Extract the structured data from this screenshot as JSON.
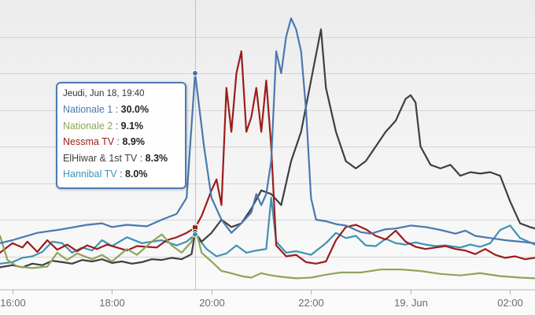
{
  "chart_data": {
    "type": "line",
    "title": "",
    "xlabel": "",
    "ylabel": "",
    "x_ticks": [
      "16:00",
      "18:00",
      "20:00",
      "22:00",
      "19. Jun",
      "02:00"
    ],
    "x_tick_hours": [
      16,
      18,
      20,
      22,
      24,
      26
    ],
    "x_range_hours": [
      15.75,
      26.5
    ],
    "y_range": [
      0,
      40
    ],
    "grid": "horizontal",
    "legend": "none",
    "series": [
      {
        "name": "Nationale 1",
        "color": "#4a78b0",
        "points": [
          [
            15.75,
            6.8
          ],
          [
            16.0,
            7.2
          ],
          [
            16.5,
            8.2
          ],
          [
            17.0,
            8.7
          ],
          [
            17.5,
            9.3
          ],
          [
            17.8,
            9.5
          ],
          [
            18.0,
            9.0
          ],
          [
            18.3,
            9.3
          ],
          [
            18.7,
            9.1
          ],
          [
            19.0,
            10.0
          ],
          [
            19.3,
            10.8
          ],
          [
            19.5,
            13.0
          ],
          [
            19.67,
            30.0
          ],
          [
            19.85,
            20.0
          ],
          [
            20.0,
            13.0
          ],
          [
            20.2,
            10.0
          ],
          [
            20.4,
            8.2
          ],
          [
            20.6,
            9.5
          ],
          [
            20.8,
            11.0
          ],
          [
            20.9,
            13.5
          ],
          [
            21.0,
            12.0
          ],
          [
            21.1,
            13.5
          ],
          [
            21.2,
            18.0
          ],
          [
            21.3,
            33.0
          ],
          [
            21.4,
            30.0
          ],
          [
            21.5,
            35.0
          ],
          [
            21.6,
            37.5
          ],
          [
            21.7,
            36.0
          ],
          [
            21.8,
            33.0
          ],
          [
            21.9,
            25.0
          ],
          [
            22.0,
            13.0
          ],
          [
            22.1,
            10.0
          ],
          [
            22.3,
            9.8
          ],
          [
            22.5,
            9.4
          ],
          [
            22.7,
            9.2
          ],
          [
            22.9,
            8.6
          ],
          [
            23.0,
            8.3
          ],
          [
            23.2,
            8.1
          ],
          [
            23.5,
            8.7
          ],
          [
            23.7,
            8.8
          ],
          [
            24.0,
            9.2
          ],
          [
            24.3,
            9.0
          ],
          [
            24.6,
            8.6
          ],
          [
            24.9,
            8.1
          ],
          [
            25.1,
            8.5
          ],
          [
            25.3,
            7.8
          ],
          [
            25.6,
            7.5
          ],
          [
            25.9,
            7.2
          ],
          [
            26.2,
            7.0
          ],
          [
            26.5,
            6.8
          ]
        ]
      },
      {
        "name": "Nationale 2",
        "color": "#8ea556",
        "points": [
          [
            15.75,
            7.8
          ],
          [
            15.9,
            4.5
          ],
          [
            16.1,
            3.6
          ],
          [
            16.4,
            3.4
          ],
          [
            16.7,
            3.6
          ],
          [
            16.9,
            5.5
          ],
          [
            17.1,
            4.5
          ],
          [
            17.3,
            5.4
          ],
          [
            17.6,
            4.6
          ],
          [
            17.8,
            5.2
          ],
          [
            18.0,
            4.3
          ],
          [
            18.3,
            6.0
          ],
          [
            18.5,
            5.2
          ],
          [
            18.8,
            7.0
          ],
          [
            19.0,
            8.0
          ],
          [
            19.2,
            6.5
          ],
          [
            19.4,
            5.5
          ],
          [
            19.6,
            7.0
          ],
          [
            19.67,
            9.1
          ],
          [
            19.8,
            5.5
          ],
          [
            20.0,
            4.3
          ],
          [
            20.2,
            3.0
          ],
          [
            20.4,
            2.7
          ],
          [
            20.6,
            2.3
          ],
          [
            20.8,
            2.1
          ],
          [
            21.0,
            2.7
          ],
          [
            21.2,
            2.4
          ],
          [
            21.4,
            2.2
          ],
          [
            21.7,
            2.0
          ],
          [
            22.0,
            2.1
          ],
          [
            22.3,
            2.5
          ],
          [
            22.6,
            2.8
          ],
          [
            23.0,
            2.8
          ],
          [
            23.4,
            3.2
          ],
          [
            23.8,
            3.2
          ],
          [
            24.2,
            3.0
          ],
          [
            24.6,
            2.6
          ],
          [
            25.0,
            2.4
          ],
          [
            25.4,
            2.7
          ],
          [
            25.8,
            2.3
          ],
          [
            26.2,
            2.1
          ],
          [
            26.5,
            2.0
          ]
        ]
      },
      {
        "name": "Nessma TV",
        "color": "#9c1c1c",
        "points": [
          [
            15.75,
            5.5
          ],
          [
            16.0,
            6.8
          ],
          [
            16.2,
            6.2
          ],
          [
            16.3,
            7.0
          ],
          [
            16.5,
            5.6
          ],
          [
            16.7,
            7.2
          ],
          [
            16.9,
            5.9
          ],
          [
            17.1,
            6.6
          ],
          [
            17.3,
            5.7
          ],
          [
            17.5,
            6.5
          ],
          [
            17.7,
            6.0
          ],
          [
            17.9,
            6.6
          ],
          [
            18.1,
            6.2
          ],
          [
            18.3,
            5.8
          ],
          [
            18.5,
            6.4
          ],
          [
            18.7,
            6.3
          ],
          [
            18.9,
            6.2
          ],
          [
            19.1,
            7.2
          ],
          [
            19.3,
            7.6
          ],
          [
            19.5,
            8.2
          ],
          [
            19.67,
            8.9
          ],
          [
            19.8,
            10.5
          ],
          [
            20.0,
            14.0
          ],
          [
            20.1,
            15.5
          ],
          [
            20.2,
            12.0
          ],
          [
            20.3,
            28.0
          ],
          [
            20.4,
            22.0
          ],
          [
            20.5,
            30.0
          ],
          [
            20.6,
            33.0
          ],
          [
            20.7,
            22.0
          ],
          [
            20.8,
            24.0
          ],
          [
            20.9,
            28.0
          ],
          [
            21.0,
            22.0
          ],
          [
            21.1,
            29.0
          ],
          [
            21.2,
            20.0
          ],
          [
            21.3,
            6.5
          ],
          [
            21.5,
            5.0
          ],
          [
            21.7,
            5.2
          ],
          [
            21.9,
            4.2
          ],
          [
            22.1,
            4.0
          ],
          [
            22.3,
            4.3
          ],
          [
            22.5,
            7.2
          ],
          [
            22.7,
            9.0
          ],
          [
            22.9,
            9.3
          ],
          [
            23.1,
            8.7
          ],
          [
            23.3,
            7.8
          ],
          [
            23.5,
            7.3
          ],
          [
            23.7,
            8.5
          ],
          [
            23.9,
            7.0
          ],
          [
            24.1,
            6.3
          ],
          [
            24.3,
            6.0
          ],
          [
            24.5,
            6.2
          ],
          [
            24.7,
            6.4
          ],
          [
            24.9,
            6.0
          ],
          [
            25.1,
            5.8
          ],
          [
            25.3,
            5.3
          ],
          [
            25.5,
            6.0
          ],
          [
            25.7,
            5.2
          ],
          [
            25.9,
            4.8
          ],
          [
            26.1,
            5.0
          ],
          [
            26.3,
            4.6
          ],
          [
            26.5,
            4.8
          ]
        ]
      },
      {
        "name": "ElHiwar & 1st TV",
        "color": "#3f3f3f",
        "points": [
          [
            15.75,
            3.5
          ],
          [
            16.0,
            3.8
          ],
          [
            16.2,
            3.5
          ],
          [
            16.4,
            4.0
          ],
          [
            16.6,
            3.8
          ],
          [
            16.8,
            4.4
          ],
          [
            17.0,
            4.2
          ],
          [
            17.2,
            4.0
          ],
          [
            17.4,
            4.5
          ],
          [
            17.6,
            4.3
          ],
          [
            17.8,
            4.6
          ],
          [
            18.0,
            4.1
          ],
          [
            18.2,
            4.3
          ],
          [
            18.4,
            4.0
          ],
          [
            18.6,
            4.2
          ],
          [
            18.8,
            4.6
          ],
          [
            19.0,
            4.5
          ],
          [
            19.2,
            4.8
          ],
          [
            19.4,
            4.6
          ],
          [
            19.6,
            5.3
          ],
          [
            19.67,
            8.3
          ],
          [
            19.8,
            7.0
          ],
          [
            20.0,
            8.2
          ],
          [
            20.2,
            10.0
          ],
          [
            20.4,
            9.0
          ],
          [
            20.6,
            9.5
          ],
          [
            20.8,
            11.5
          ],
          [
            21.0,
            14.0
          ],
          [
            21.2,
            13.5
          ],
          [
            21.4,
            12.0
          ],
          [
            21.6,
            18.0
          ],
          [
            21.8,
            22.0
          ],
          [
            22.0,
            29.0
          ],
          [
            22.2,
            36.0
          ],
          [
            22.3,
            28.0
          ],
          [
            22.5,
            22.0
          ],
          [
            22.7,
            18.0
          ],
          [
            22.9,
            17.0
          ],
          [
            23.1,
            18.0
          ],
          [
            23.3,
            20.0
          ],
          [
            23.5,
            22.0
          ],
          [
            23.7,
            23.5
          ],
          [
            23.9,
            26.5
          ],
          [
            24.0,
            27.0
          ],
          [
            24.1,
            26.0
          ],
          [
            24.2,
            20.0
          ],
          [
            24.4,
            17.5
          ],
          [
            24.6,
            17.0
          ],
          [
            24.8,
            17.5
          ],
          [
            25.0,
            16.0
          ],
          [
            25.2,
            16.5
          ],
          [
            25.4,
            16.3
          ],
          [
            25.6,
            16.5
          ],
          [
            25.8,
            16.0
          ],
          [
            26.0,
            12.5
          ],
          [
            26.2,
            9.5
          ],
          [
            26.4,
            9.0
          ],
          [
            26.5,
            8.8
          ]
        ]
      },
      {
        "name": "Hannibal TV",
        "color": "#3e93b4",
        "points": [
          [
            15.75,
            4.0
          ],
          [
            16.0,
            4.2
          ],
          [
            16.2,
            4.8
          ],
          [
            16.4,
            5.0
          ],
          [
            16.6,
            5.6
          ],
          [
            16.8,
            7.0
          ],
          [
            17.0,
            6.8
          ],
          [
            17.2,
            5.5
          ],
          [
            17.4,
            6.2
          ],
          [
            17.6,
            5.8
          ],
          [
            17.8,
            7.2
          ],
          [
            18.0,
            6.4
          ],
          [
            18.3,
            7.6
          ],
          [
            18.6,
            6.8
          ],
          [
            19.0,
            7.2
          ],
          [
            19.3,
            6.5
          ],
          [
            19.5,
            7.0
          ],
          [
            19.67,
            8.0
          ],
          [
            19.9,
            6.0
          ],
          [
            20.1,
            5.0
          ],
          [
            20.3,
            5.4
          ],
          [
            20.5,
            6.5
          ],
          [
            20.7,
            5.5
          ],
          [
            20.9,
            5.8
          ],
          [
            21.1,
            6.0
          ],
          [
            21.2,
            13.0
          ],
          [
            21.3,
            7.0
          ],
          [
            21.5,
            5.5
          ],
          [
            21.7,
            5.7
          ],
          [
            22.0,
            5.2
          ],
          [
            22.3,
            6.8
          ],
          [
            22.5,
            8.2
          ],
          [
            22.7,
            7.5
          ],
          [
            22.9,
            7.8
          ],
          [
            23.1,
            6.5
          ],
          [
            23.3,
            6.4
          ],
          [
            23.5,
            7.4
          ],
          [
            23.7,
            6.8
          ],
          [
            23.9,
            6.6
          ],
          [
            24.1,
            6.9
          ],
          [
            24.3,
            6.6
          ],
          [
            24.5,
            6.4
          ],
          [
            24.7,
            6.5
          ],
          [
            25.0,
            6.2
          ],
          [
            25.2,
            6.6
          ],
          [
            25.4,
            6.3
          ],
          [
            25.6,
            6.8
          ],
          [
            25.8,
            8.6
          ],
          [
            26.0,
            9.2
          ],
          [
            26.2,
            7.5
          ],
          [
            26.5,
            6.6
          ]
        ]
      }
    ],
    "tooltip": {
      "header": "Jeudi, Jun 18, 19:40",
      "x_hour": 19.67,
      "rows": [
        {
          "name": "Nationale 1",
          "value": "30.0%",
          "color": "#4a78b0"
        },
        {
          "name": "Nationale 2",
          "value": "9.1%",
          "color": "#8ea556"
        },
        {
          "name": "Nessma TV",
          "value": "8.9%",
          "color": "#9c1c1c"
        },
        {
          "name": "ElHiwar & 1st TV",
          "value": "8.3%",
          "color": "#3f3f3f"
        },
        {
          "name": "Hannibal TV",
          "value": "8.0%",
          "color": "#3e93b4"
        }
      ]
    }
  }
}
